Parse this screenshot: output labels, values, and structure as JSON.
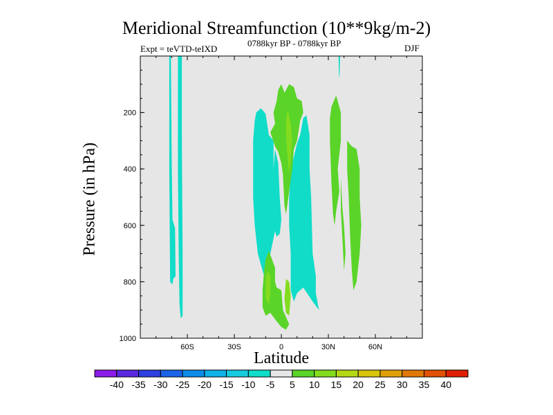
{
  "chart_data": {
    "type": "heatmap",
    "title": "Meridional Streamfunction (10**9kg/m-2)",
    "subtitle_left": "Expt = teVTD-teIXD",
    "subtitle_center": "0788kyr BP - 0788kyr BP",
    "subtitle_right": "DJF",
    "xlabel": "Latitude",
    "ylabel": "Pressure (in hPa)",
    "xlim": [
      -90,
      90
    ],
    "ylim": [
      0,
      1000
    ],
    "y_reversed": true,
    "x_ticks": [
      {
        "value": -60,
        "label": "60S"
      },
      {
        "value": -30,
        "label": "30S"
      },
      {
        "value": 0,
        "label": "0"
      },
      {
        "value": 30,
        "label": "30N"
      },
      {
        "value": 60,
        "label": "60N"
      }
    ],
    "y_ticks": [
      {
        "value": 200,
        "label": "200"
      },
      {
        "value": 400,
        "label": "400"
      },
      {
        "value": 600,
        "label": "600"
      },
      {
        "value": 800,
        "label": "800"
      },
      {
        "value": 1000,
        "label": "1000"
      }
    ],
    "background_color": "#e6e6e6",
    "contour_levels": [
      -40,
      -35,
      -30,
      -25,
      -20,
      -15,
      -10,
      -5,
      5,
      10,
      15,
      20,
      25,
      30,
      35,
      40
    ],
    "colorbar_colors": [
      "#8c1de8",
      "#5a28e0",
      "#2e40e0",
      "#1a64e8",
      "#0c8ce8",
      "#10b0e8",
      "#18cce0",
      "#10dcc8",
      "#e6e6e6",
      "#5ad428",
      "#84dc1e",
      "#b4d814",
      "#d8c40c",
      "#e0a00a",
      "#e07808",
      "#e05006",
      "#e02004"
    ],
    "regions": [
      {
        "name": "southern-high-lat-band",
        "value": -7,
        "points": [
          [
            -71.5,
            0
          ],
          [
            -70.5,
            0
          ],
          [
            -70,
            350
          ],
          [
            -69.5,
            580
          ],
          [
            -67.8,
            610
          ],
          [
            -67.5,
            780
          ],
          [
            -69,
            790
          ],
          [
            -69.5,
            810
          ],
          [
            -71,
            800
          ],
          [
            -71.5,
            400
          ]
        ]
      },
      {
        "name": "southern-high-lat-band-2",
        "value": -7,
        "points": [
          [
            -66,
            0
          ],
          [
            -63.5,
            0
          ],
          [
            -63.5,
            300
          ],
          [
            -63,
            700
          ],
          [
            -63,
            920
          ],
          [
            -64.2,
            930
          ],
          [
            -65,
            880
          ],
          [
            -65.5,
            700
          ],
          [
            -66,
            400
          ]
        ]
      },
      {
        "name": "subtropical-neg-west",
        "value": -7,
        "points": [
          [
            -16,
            200
          ],
          [
            -13,
            185
          ],
          [
            -10,
            205
          ],
          [
            -8,
            280
          ],
          [
            -5,
            300
          ],
          [
            -5,
            400
          ],
          [
            -4,
            500
          ],
          [
            -3,
            560
          ],
          [
            -4,
            620
          ],
          [
            -7,
            700
          ],
          [
            -9,
            760
          ],
          [
            -11,
            780
          ],
          [
            -15,
            700
          ],
          [
            -17,
            600
          ],
          [
            -18,
            500
          ],
          [
            -18,
            300
          ],
          [
            -17,
            230
          ]
        ]
      },
      {
        "name": "subtropical-neg-west-core",
        "value": -10,
        "points": [
          [
            -16,
            300
          ],
          [
            -13,
            260
          ],
          [
            -11,
            300
          ],
          [
            -11,
            400
          ],
          [
            -12,
            520
          ],
          [
            -14,
            600
          ],
          [
            -16,
            520
          ],
          [
            -17,
            400
          ]
        ]
      },
      {
        "name": "equatorial-neg-center",
        "value": -7,
        "points": [
          [
            -4,
            330
          ],
          [
            -2,
            380
          ],
          [
            -1,
            500
          ],
          [
            0,
            580
          ],
          [
            -1,
            630
          ],
          [
            -3,
            640
          ],
          [
            -5,
            600
          ],
          [
            -6,
            500
          ],
          [
            -5,
            400
          ]
        ]
      },
      {
        "name": "northern-neg-lower",
        "value": -7,
        "points": [
          [
            7,
            380
          ],
          [
            10,
            310
          ],
          [
            12,
            280
          ],
          [
            14,
            220
          ],
          [
            16,
            210
          ],
          [
            18,
            280
          ],
          [
            18,
            400
          ],
          [
            19,
            500
          ],
          [
            20,
            700
          ],
          [
            22,
            780
          ],
          [
            22,
            840
          ],
          [
            24,
            900
          ],
          [
            20,
            870
          ],
          [
            14,
            820
          ],
          [
            10,
            840
          ],
          [
            8,
            870
          ],
          [
            6,
            830
          ],
          [
            6,
            700
          ],
          [
            5,
            600
          ],
          [
            5,
            500
          ],
          [
            6,
            420
          ]
        ]
      },
      {
        "name": "northern-neg-tip",
        "value": -7,
        "points": [
          [
            36.5,
            0
          ],
          [
            37.5,
            0
          ],
          [
            37.2,
            60
          ],
          [
            36.8,
            80
          ]
        ]
      },
      {
        "name": "upper-pos-cell",
        "value": 7,
        "points": [
          [
            -7,
            270
          ],
          [
            -4,
            240
          ],
          [
            -5,
            200
          ],
          [
            -3,
            160
          ],
          [
            -2,
            120
          ],
          [
            0,
            100
          ],
          [
            2,
            130
          ],
          [
            5,
            100
          ],
          [
            8,
            110
          ],
          [
            10,
            150
          ],
          [
            13,
            160
          ],
          [
            14,
            200
          ],
          [
            12,
            230
          ],
          [
            10,
            300
          ],
          [
            8,
            330
          ],
          [
            7,
            400
          ],
          [
            5,
            480
          ],
          [
            4,
            520
          ],
          [
            3,
            560
          ],
          [
            2,
            530
          ],
          [
            1,
            420
          ],
          [
            0,
            380
          ],
          [
            -2,
            340
          ],
          [
            -4,
            320
          ]
        ]
      },
      {
        "name": "upper-pos-core",
        "value": 12,
        "points": [
          [
            4,
            190
          ],
          [
            6,
            240
          ],
          [
            7,
            300
          ],
          [
            6,
            360
          ],
          [
            5,
            420
          ],
          [
            4,
            360
          ],
          [
            3,
            280
          ],
          [
            3,
            230
          ]
        ]
      },
      {
        "name": "lower-pos-cell",
        "value": 7,
        "points": [
          [
            -8,
            690
          ],
          [
            -6,
            720
          ],
          [
            -4,
            750
          ],
          [
            -4,
            800
          ],
          [
            -3,
            820
          ],
          [
            0,
            830
          ],
          [
            1,
            900
          ],
          [
            5,
            950
          ],
          [
            3,
            970
          ],
          [
            0,
            960
          ],
          [
            -3,
            940
          ],
          [
            -7,
            910
          ],
          [
            -10,
            920
          ],
          [
            -12,
            890
          ],
          [
            -12,
            830
          ],
          [
            -11,
            760
          ],
          [
            -10,
            720
          ]
        ]
      },
      {
        "name": "lower-pos-core",
        "value": 12,
        "points": [
          [
            -9,
            760
          ],
          [
            -7,
            780
          ],
          [
            -7,
            840
          ],
          [
            -8,
            880
          ],
          [
            -10,
            860
          ],
          [
            -10,
            800
          ]
        ]
      },
      {
        "name": "lower-pos-core-2",
        "value": 12,
        "points": [
          [
            3,
            790
          ],
          [
            5,
            800
          ],
          [
            6,
            850
          ],
          [
            5,
            920
          ],
          [
            3,
            910
          ],
          [
            2,
            860
          ]
        ]
      },
      {
        "name": "north-pos-cell",
        "value": 7,
        "points": [
          [
            32,
            180
          ],
          [
            35,
            140
          ],
          [
            38,
            200
          ],
          [
            38,
            300
          ],
          [
            36,
            400
          ],
          [
            37,
            480
          ],
          [
            35,
            550
          ],
          [
            34,
            600
          ],
          [
            33,
            560
          ],
          [
            32,
            450
          ],
          [
            31,
            300
          ],
          [
            31,
            220
          ]
        ]
      },
      {
        "name": "north-pos-cell-2",
        "value": 7,
        "points": [
          [
            38,
            430
          ],
          [
            39,
            540
          ],
          [
            40,
            600
          ],
          [
            41,
            700
          ],
          [
            40,
            760
          ],
          [
            39,
            650
          ],
          [
            38,
            550
          ]
        ]
      },
      {
        "name": "north-pos-cell-3",
        "value": 7,
        "points": [
          [
            42,
            300
          ],
          [
            45,
            320
          ],
          [
            48,
            330
          ],
          [
            50,
            400
          ],
          [
            50,
            500
          ],
          [
            51,
            600
          ],
          [
            50,
            700
          ],
          [
            48,
            800
          ],
          [
            46,
            830
          ],
          [
            45,
            760
          ],
          [
            44,
            650
          ],
          [
            43,
            500
          ],
          [
            42,
            400
          ]
        ]
      }
    ]
  }
}
